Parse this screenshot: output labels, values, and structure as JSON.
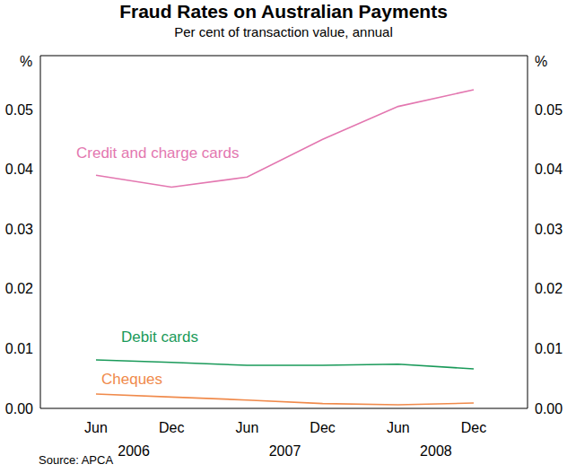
{
  "chart_data": {
    "type": "line",
    "title": "Fraud Rates on Australian Payments",
    "subtitle": "Per cent of transaction value, annual",
    "y_label": "%",
    "source": "Source: APCA",
    "categories": [
      "Jun",
      "Dec",
      "Jun",
      "Dec",
      "Jun",
      "Dec"
    ],
    "category_groups": [
      "2006",
      "2007",
      "2008"
    ],
    "series": [
      {
        "name": "Credit and charge cards",
        "color": "#e377b0",
        "values": [
          0.039,
          0.037,
          0.0387,
          0.045,
          0.0505,
          0.0533
        ]
      },
      {
        "name": "Debit cards",
        "color": "#1a9a5a",
        "values": [
          0.0081,
          0.0077,
          0.0072,
          0.0072,
          0.0074,
          0.0066
        ]
      },
      {
        "name": "Cheques",
        "color": "#f08a4b",
        "values": [
          0.0024,
          0.0019,
          0.0014,
          0.0008,
          0.0006,
          0.0009
        ]
      }
    ],
    "ylim": [
      0,
      0.059
    ],
    "yticks": [
      {
        "value": 0,
        "label": "0.00"
      },
      0.01,
      0.02,
      0.03,
      0.04,
      0.05
    ],
    "grid": false
  }
}
